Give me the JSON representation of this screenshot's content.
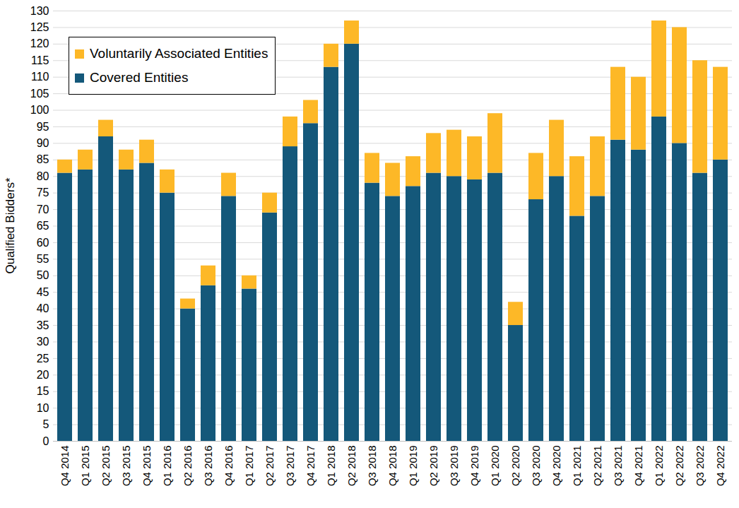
{
  "chart_data": {
    "type": "bar",
    "stacked": true,
    "grid": true,
    "legend": "upper left",
    "y_label": "Qualified Bidders*",
    "categories": [
      "Q4 2014",
      "Q1 2015",
      "Q2 2015",
      "Q3 2015",
      "Q4 2015",
      "Q1 2016",
      "Q2 2016",
      "Q3 2016",
      "Q4 2016",
      "Q1 2017",
      "Q2 2017",
      "Q3 2017",
      "Q4 2017",
      "Q1 2018",
      "Q2 2018",
      "Q3 2018",
      "Q4 2018",
      "Q1 2019",
      "Q2 2019",
      "Q3 2019",
      "Q4 2019",
      "Q1 2020",
      "Q2 2020",
      "Q3 2020",
      "Q4 2020",
      "Q1 2021",
      "Q2 2021",
      "Q3 2021",
      "Q4 2021",
      "Q1 2022",
      "Q2 2022",
      "Q3 2022",
      "Q4 2022"
    ],
    "series": [
      {
        "name": "Covered Entities",
        "color": "#14587a",
        "values": [
          81,
          82,
          92,
          82,
          84,
          75,
          40,
          47,
          74,
          46,
          69,
          89,
          96,
          113,
          120,
          78,
          74,
          77,
          81,
          80,
          79,
          81,
          35,
          73,
          80,
          68,
          74,
          91,
          88,
          98,
          90,
          81,
          85
        ]
      },
      {
        "name": "Voluntarily Associated Entities",
        "color": "#fdb827",
        "values": [
          4,
          6,
          5,
          6,
          7,
          7,
          3,
          6,
          7,
          4,
          6,
          9,
          7,
          7,
          7,
          9,
          10,
          9,
          12,
          14,
          13,
          18,
          7,
          14,
          17,
          18,
          18,
          22,
          22,
          29,
          35,
          34,
          28
        ]
      }
    ],
    "ylim": [
      0,
      130
    ],
    "yticks": [
      0,
      5,
      10,
      15,
      20,
      25,
      30,
      35,
      40,
      45,
      50,
      55,
      60,
      65,
      70,
      75,
      80,
      85,
      90,
      95,
      100,
      105,
      110,
      115,
      120,
      125,
      130
    ]
  }
}
